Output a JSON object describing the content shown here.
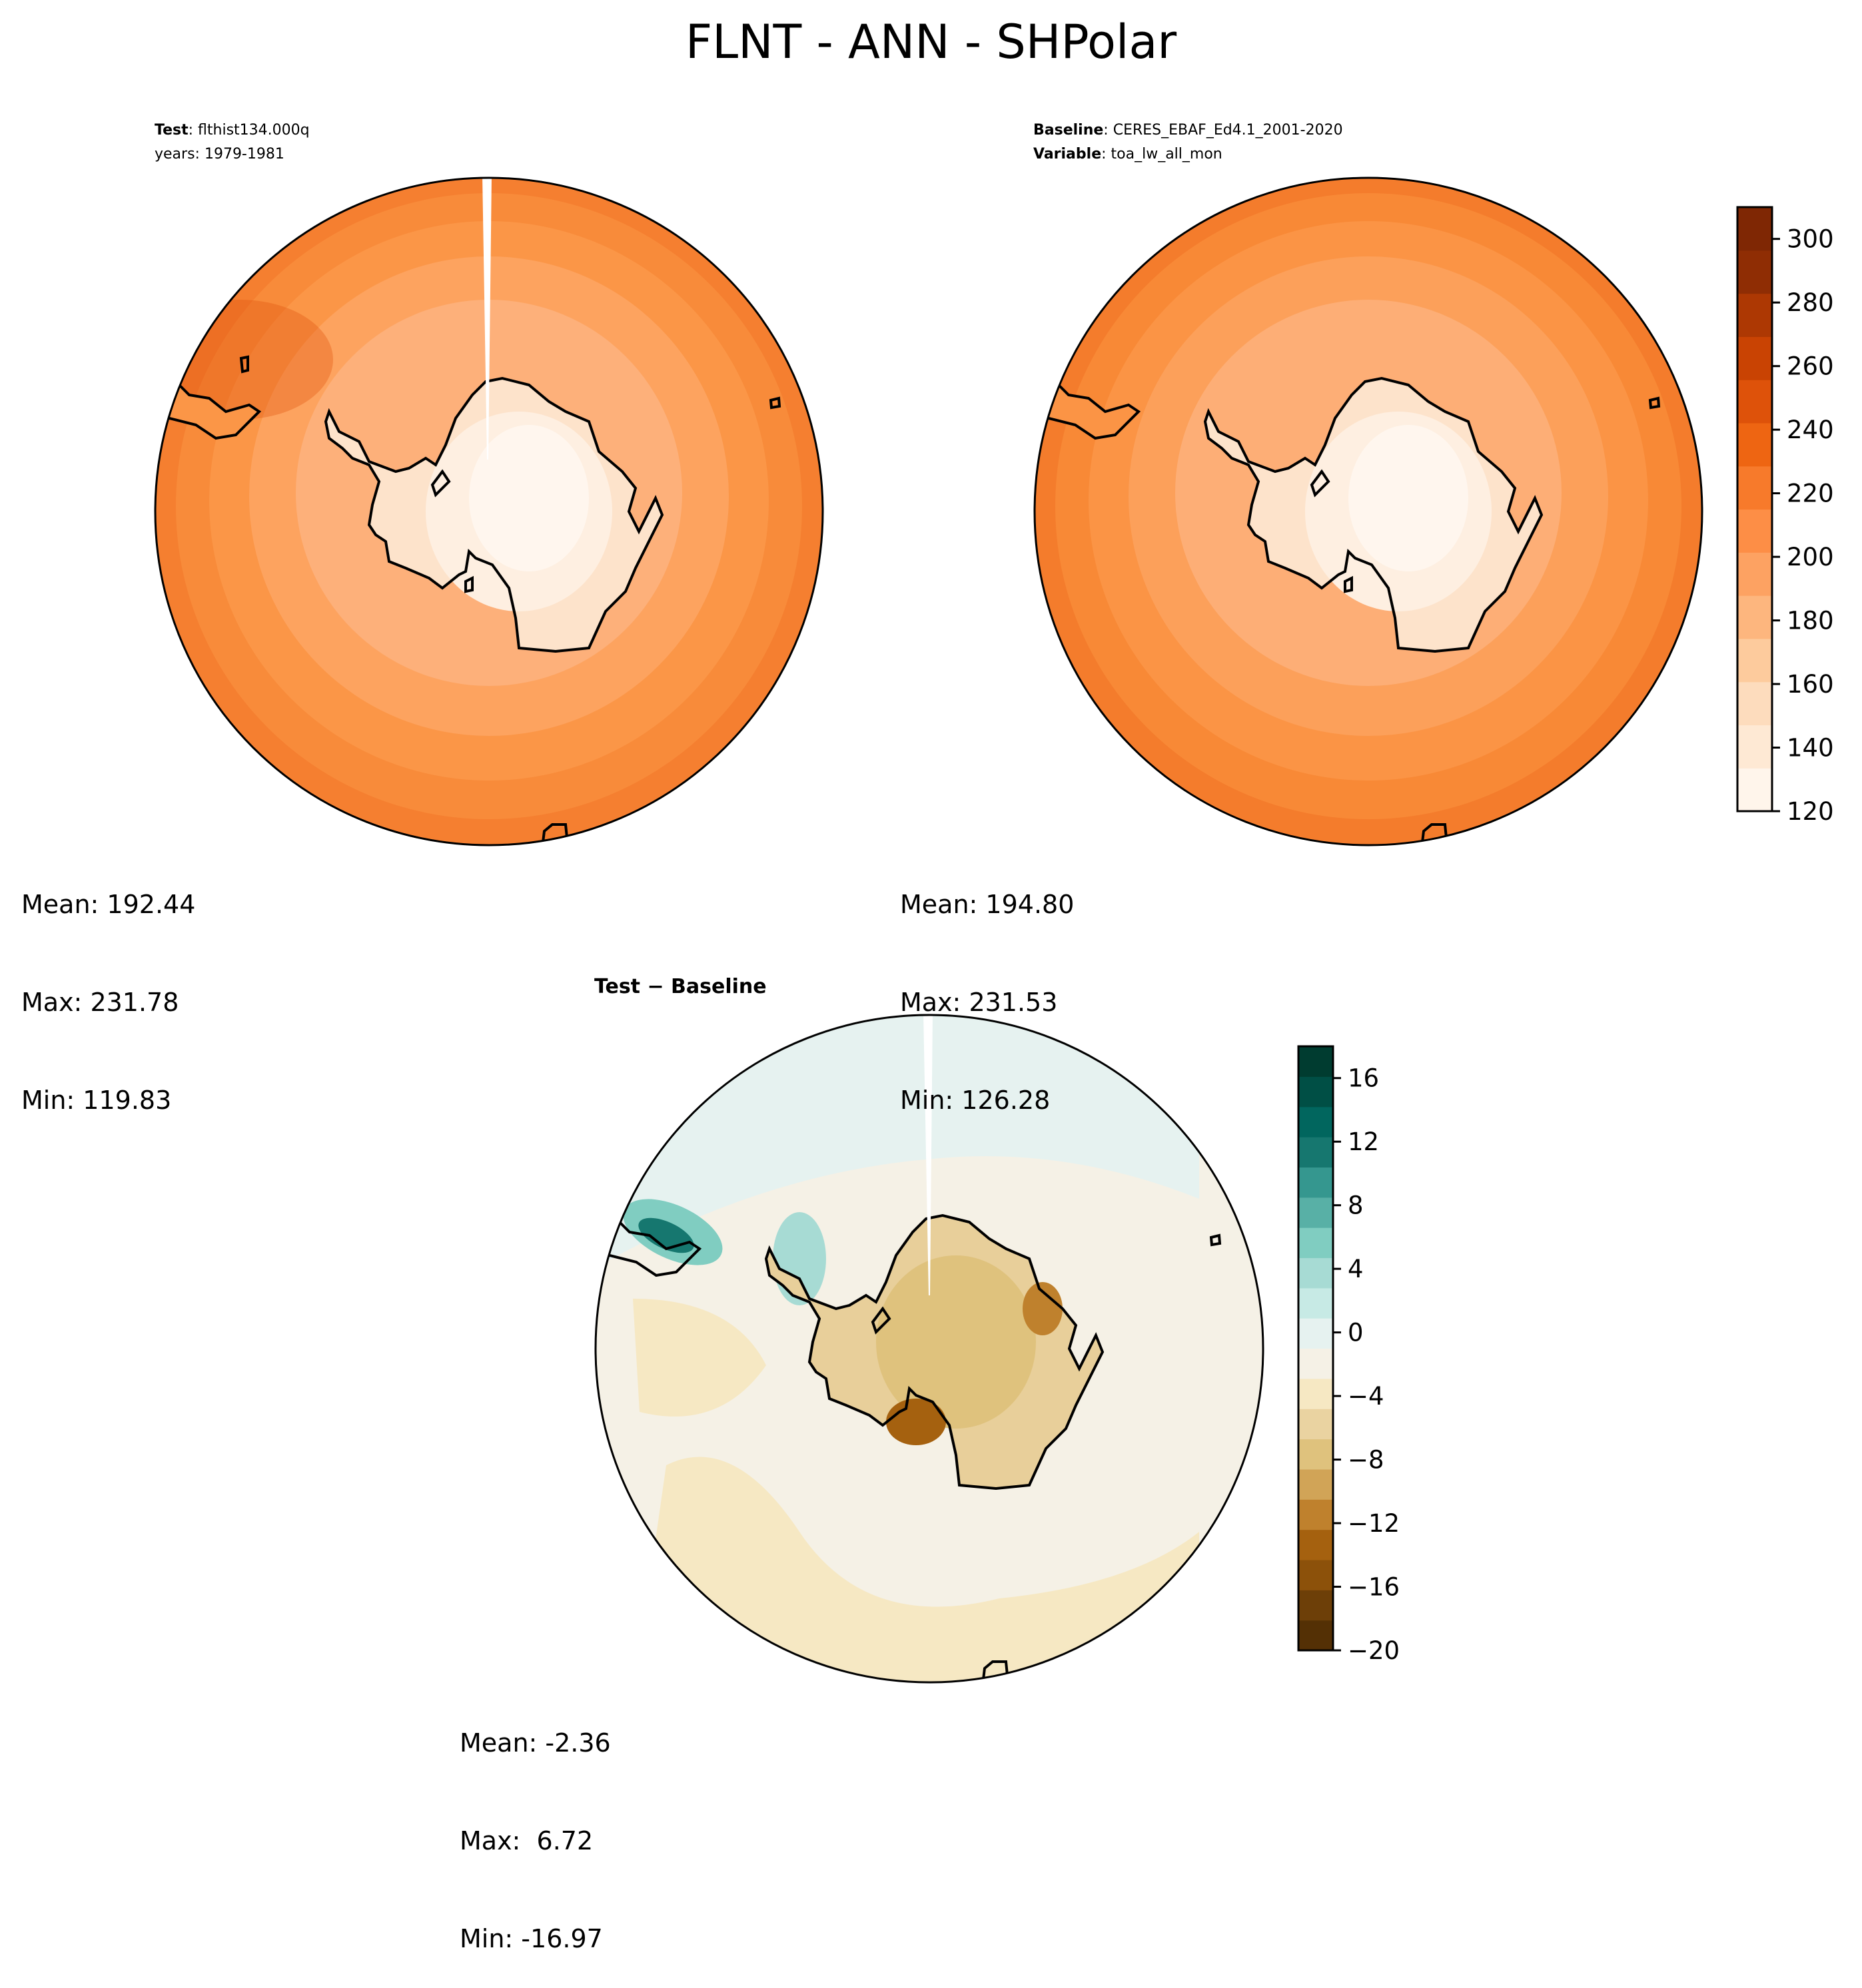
{
  "title": "FLNT - ANN - SHPolar",
  "panels": {
    "test": {
      "header_label": "Test",
      "header_value": "flthist134.000q",
      "header_line2": "years: 1979-1981",
      "stats": {
        "mean": "Mean: 192.44",
        "max": "Max: 231.78",
        "min": "Min: 119.83"
      }
    },
    "baseline": {
      "header_label": "Baseline",
      "header_value": "CERES_EBAF_Ed4.1_2001-2020",
      "header_label2": "Variable",
      "header_value2": "toa_lw_all_mon",
      "stats": {
        "mean": "Mean: 194.80",
        "max": "Max: 231.53",
        "min": "Min: 126.28"
      }
    },
    "diff": {
      "header_title": "Test − Baseline",
      "stats": {
        "mean": "Mean: -2.36",
        "max": "Max:  6.72",
        "min": "Min: -16.97"
      }
    }
  },
  "colorbar_main": {
    "range": [
      120,
      310
    ],
    "ticks": [
      {
        "value": 120,
        "label": "120"
      },
      {
        "value": 140,
        "label": "140"
      },
      {
        "value": 160,
        "label": "160"
      },
      {
        "value": 180,
        "label": "180"
      },
      {
        "value": 200,
        "label": "200"
      },
      {
        "value": 220,
        "label": "220"
      },
      {
        "value": 240,
        "label": "240"
      },
      {
        "value": 260,
        "label": "260"
      },
      {
        "value": 280,
        "label": "280"
      },
      {
        "value": 300,
        "label": "300"
      }
    ],
    "colors": [
      "#fff5eb",
      "#fee9d4",
      "#fddcbd",
      "#fdcb9d",
      "#fdb67e",
      "#fda262",
      "#fd8e46",
      "#f77a2b",
      "#ee6512",
      "#de520a",
      "#c94303",
      "#ad3803",
      "#8f2d04",
      "#7f2704"
    ]
  },
  "colorbar_diff": {
    "range": [
      -20,
      18
    ],
    "ticks": [
      {
        "value": -20,
        "label": "−20"
      },
      {
        "value": -16,
        "label": "−16"
      },
      {
        "value": -12,
        "label": "−12"
      },
      {
        "value": -8,
        "label": "−8"
      },
      {
        "value": -4,
        "label": "−4"
      },
      {
        "value": 0,
        "label": "0"
      },
      {
        "value": 4,
        "label": "4"
      },
      {
        "value": 8,
        "label": "8"
      },
      {
        "value": 12,
        "label": "12"
      },
      {
        "value": 16,
        "label": "16"
      }
    ],
    "colors": [
      "#543005",
      "#6d3f08",
      "#8c510a",
      "#a5610f",
      "#bf812d",
      "#d1a457",
      "#dfc27d",
      "#ead3a1",
      "#f6e8c3",
      "#f5f1e6",
      "#e6f2f0",
      "#c7eae5",
      "#a7dbd4",
      "#80cdc1",
      "#58b0a6",
      "#35978f",
      "#16776f",
      "#01665e",
      "#004f45",
      "#003c30"
    ]
  }
}
